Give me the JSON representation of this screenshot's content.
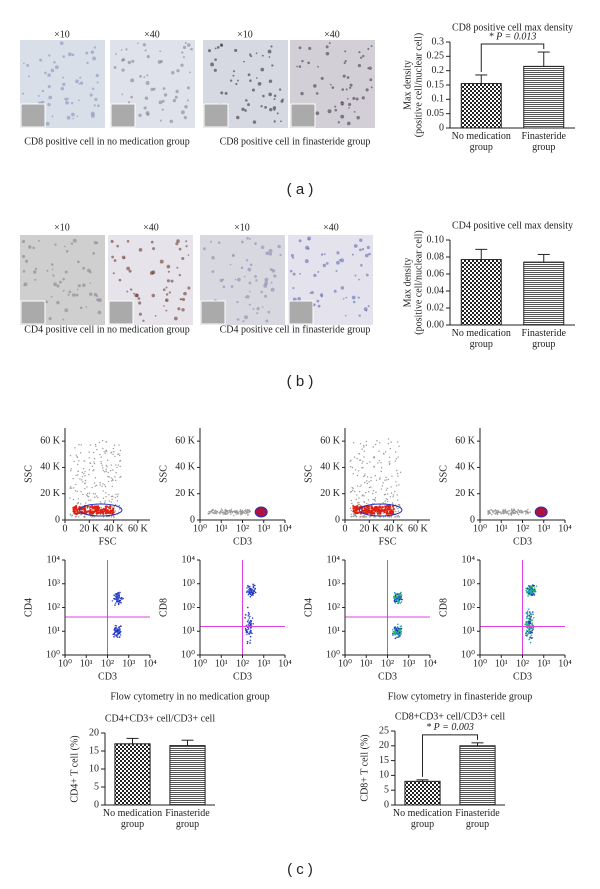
{
  "figure": {
    "panels": [
      {
        "label": "( a )",
        "magnifications": [
          "×10",
          "×40",
          "×10",
          "×40"
        ],
        "captions": [
          "CD8 positive cell in no medication group",
          "CD8 positive cell in finasteride group"
        ]
      },
      {
        "label": "( b )",
        "magnifications": [
          "×10",
          "×40",
          "×10",
          "×40"
        ],
        "captions": [
          "CD4 positive cell in no medication group",
          "CD4 positive cell in finasteride group"
        ]
      },
      {
        "label": "( c )",
        "captions": [
          "Flow cytometry in no medication group",
          "Flow cytometry in finasteride group"
        ]
      }
    ]
  },
  "chart_data": [
    {
      "type": "bar",
      "title": "CD8 positive cell max density",
      "ylabel": [
        "Max density",
        "(positive cell/nuclear cell)"
      ],
      "categories": [
        "No medication group",
        "Finasteride group"
      ],
      "values": [
        0.155,
        0.215
      ],
      "errors": [
        0.03,
        0.05
      ],
      "fills": [
        "checker",
        "hlines"
      ],
      "ylim": [
        0,
        0.3
      ],
      "yticks": [
        0,
        0.05,
        0.1,
        0.15,
        0.2,
        0.25,
        0.3
      ],
      "annotation": "* P = 0.013"
    },
    {
      "type": "bar",
      "title": "CD4 positive cell max density",
      "ylabel": [
        "Max density",
        "(positive cell/nuclear cell)"
      ],
      "categories": [
        "No medication group",
        "Finasteride group"
      ],
      "values": [
        0.077,
        0.074
      ],
      "errors": [
        0.012,
        0.009
      ],
      "fills": [
        "checker",
        "hlines"
      ],
      "ylim": [
        0,
        0.1
      ],
      "yticks": [
        {
          "value": 0,
          "label": "0.00"
        },
        {
          "value": 0.02,
          "label": "0.02"
        },
        {
          "value": 0.04,
          "label": "0.04"
        },
        {
          "value": 0.06,
          "label": "0.06"
        },
        {
          "value": 0.08,
          "label": "0.08"
        },
        {
          "value": 0.1,
          "label": "0.10"
        }
      ]
    },
    {
      "type": "bar",
      "title": "CD4+CD3+ cell/CD3+ cell",
      "ylabel": [
        "CD4+ T cell (%)"
      ],
      "categories": [
        "No medication group",
        "Finasteride group"
      ],
      "values": [
        17,
        16.5
      ],
      "errors": [
        1.5,
        1.5
      ],
      "fills": [
        "checker",
        "hlines"
      ],
      "ylim": [
        0,
        20
      ],
      "yticks": [
        0,
        5,
        10,
        15,
        20
      ]
    },
    {
      "type": "bar",
      "title": "CD8+CD3+ cell/CD3+ cell",
      "ylabel": [
        "CD8+ T cell (%)"
      ],
      "categories": [
        "No medication group",
        "Finasteride group"
      ],
      "values": [
        8,
        20
      ],
      "errors": [
        0.5,
        1
      ],
      "fills": [
        "checker",
        "hlines"
      ],
      "ylim": [
        0,
        25
      ],
      "yticks": [
        0,
        5,
        10,
        15,
        20,
        25
      ],
      "annotation": "* P = 0.003"
    },
    {
      "type": "flow",
      "xlabel": "FSC",
      "ylabel": "SSC",
      "xlim": [
        0,
        70000
      ],
      "ylim": [
        0,
        70000
      ],
      "xticks": [
        0,
        {
          "value": 20000,
          "label": "20 K"
        },
        {
          "value": 40000,
          "label": "40 K"
        },
        {
          "value": 60000,
          "label": "60 K"
        }
      ],
      "yticks": [
        0,
        {
          "value": 20000,
          "label": "20 K"
        },
        {
          "value": 40000,
          "label": "40 K"
        },
        {
          "value": 60000,
          "label": "60 K"
        }
      ]
    },
    {
      "type": "flow",
      "xlabel": "CD3",
      "ylabel": "SSC",
      "xlog": true,
      "xlim": [
        1,
        10000
      ],
      "ylim": [
        0,
        70000
      ],
      "xticks": [
        {
          "value": 1,
          "label": "10⁰"
        },
        {
          "value": 10,
          "label": "10¹"
        },
        {
          "value": 100,
          "label": "10²"
        },
        {
          "value": 1000,
          "label": "10³"
        },
        {
          "value": 10000,
          "label": "10⁴"
        }
      ],
      "yticks": [
        0,
        {
          "value": 20000,
          "label": "20 K"
        },
        {
          "value": 40000,
          "label": "40 K"
        },
        {
          "value": 60000,
          "label": "60 K"
        }
      ]
    },
    {
      "type": "flow",
      "xlabel": "FSC",
      "ylabel": "SSC",
      "xlim": [
        0,
        70000
      ],
      "ylim": [
        0,
        70000
      ],
      "xticks": [
        0,
        {
          "value": 20000,
          "label": "20 K"
        },
        {
          "value": 40000,
          "label": "40 K"
        },
        {
          "value": 60000,
          "label": "60 K"
        }
      ],
      "yticks": [
        0,
        {
          "value": 20000,
          "label": "20 K"
        },
        {
          "value": 40000,
          "label": "40 K"
        },
        {
          "value": 60000,
          "label": "60 K"
        }
      ]
    },
    {
      "type": "flow",
      "xlabel": "CD3",
      "ylabel": "SSC",
      "xlog": true,
      "xlim": [
        1,
        10000
      ],
      "ylim": [
        0,
        70000
      ],
      "xticks": [
        {
          "value": 1,
          "label": "10⁰"
        },
        {
          "value": 10,
          "label": "10¹"
        },
        {
          "value": 100,
          "label": "10²"
        },
        {
          "value": 1000,
          "label": "10³"
        },
        {
          "value": 10000,
          "label": "10⁴"
        }
      ],
      "yticks": [
        0,
        {
          "value": 20000,
          "label": "20 K"
        },
        {
          "value": 40000,
          "label": "40 K"
        },
        {
          "value": 60000,
          "label": "60 K"
        }
      ]
    },
    {
      "type": "flow",
      "xlabel": "CD3",
      "ylabel": "CD4",
      "xlog": true,
      "ylog": true,
      "xlim": [
        1,
        10000
      ],
      "ylim": [
        1,
        10000
      ],
      "xticks": [
        {
          "value": 1,
          "label": "10⁰"
        },
        {
          "value": 10,
          "label": "10¹"
        },
        {
          "value": 100,
          "label": "10²"
        },
        {
          "value": 1000,
          "label": "10³"
        },
        {
          "value": 10000,
          "label": "10⁴"
        }
      ],
      "yticks": [
        {
          "value": 1,
          "label": "10⁰"
        },
        {
          "value": 10,
          "label": "10¹"
        },
        {
          "value": 100,
          "label": "10²"
        },
        {
          "value": 1000,
          "label": "10³"
        },
        {
          "value": 10000,
          "label": "10⁴"
        }
      ]
    },
    {
      "type": "flow",
      "xlabel": "CD3",
      "ylabel": "CD8",
      "xlog": true,
      "ylog": true,
      "xlim": [
        1,
        10000
      ],
      "ylim": [
        1,
        10000
      ],
      "xticks": [
        {
          "value": 1,
          "label": "10⁰"
        },
        {
          "value": 10,
          "label": "10¹"
        },
        {
          "value": 100,
          "label": "10²"
        },
        {
          "value": 1000,
          "label": "10³"
        },
        {
          "value": 10000,
          "label": "10⁴"
        }
      ],
      "yticks": [
        {
          "value": 1,
          "label": "10⁰"
        },
        {
          "value": 10,
          "label": "10¹"
        },
        {
          "value": 100,
          "label": "10²"
        },
        {
          "value": 1000,
          "label": "10³"
        },
        {
          "value": 10000,
          "label": "10⁴"
        }
      ]
    },
    {
      "type": "flow",
      "xlabel": "CD3",
      "ylabel": "CD4",
      "xlog": true,
      "ylog": true,
      "xlim": [
        1,
        10000
      ],
      "ylim": [
        1,
        10000
      ],
      "xticks": [
        {
          "value": 1,
          "label": "10⁰"
        },
        {
          "value": 10,
          "label": "10¹"
        },
        {
          "value": 100,
          "label": "10²"
        },
        {
          "value": 1000,
          "label": "10³"
        },
        {
          "value": 10000,
          "label": "10⁴"
        }
      ],
      "yticks": [
        {
          "value": 1,
          "label": "10⁰"
        },
        {
          "value": 10,
          "label": "10¹"
        },
        {
          "value": 100,
          "label": "10²"
        },
        {
          "value": 1000,
          "label": "10³"
        },
        {
          "value": 10000,
          "label": "10⁴"
        }
      ]
    },
    {
      "type": "flow",
      "xlabel": "CD3",
      "ylabel": "CD8",
      "xlog": true,
      "ylog": true,
      "xlim": [
        1,
        10000
      ],
      "ylim": [
        1,
        10000
      ],
      "xticks": [
        {
          "value": 1,
          "label": "10⁰"
        },
        {
          "value": 10,
          "label": "10¹"
        },
        {
          "value": 100,
          "label": "10²"
        },
        {
          "value": 1000,
          "label": "10³"
        },
        {
          "value": 10000,
          "label": "10⁴"
        }
      ],
      "yticks": [
        {
          "value": 1,
          "label": "10⁰"
        },
        {
          "value": 10,
          "label": "10¹"
        },
        {
          "value": 100,
          "label": "10²"
        },
        {
          "value": 1000,
          "label": "10³"
        },
        {
          "value": 10000,
          "label": "10⁴"
        }
      ]
    }
  ]
}
